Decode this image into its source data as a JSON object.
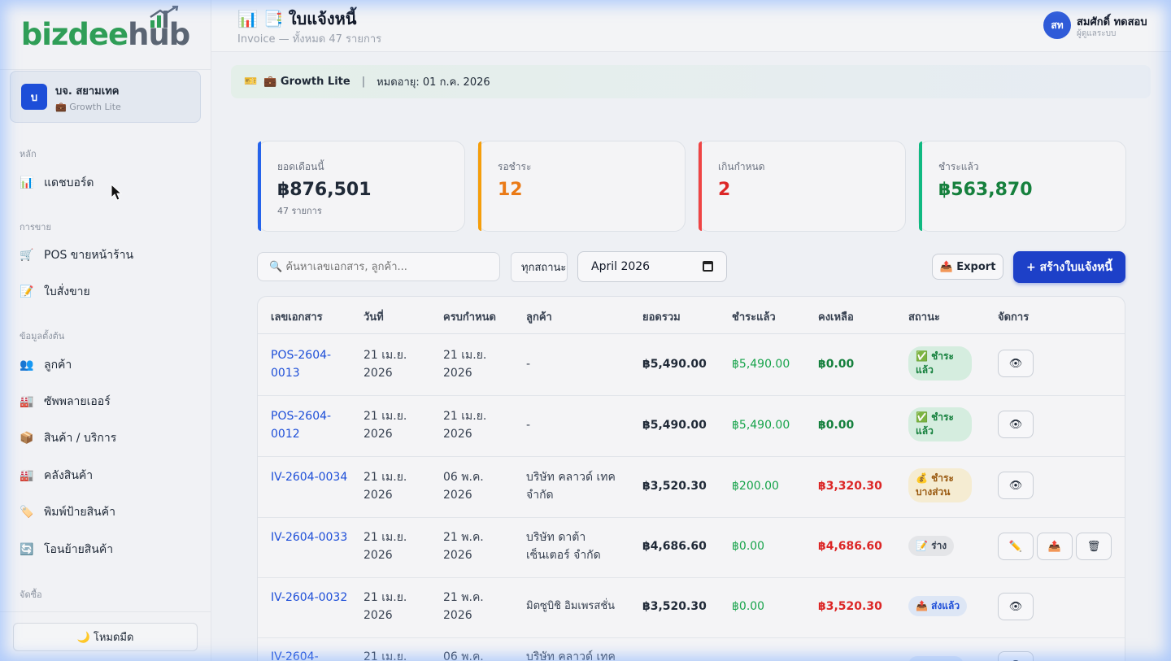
{
  "sidebar": {
    "logo": {
      "part1": "bizdee",
      "part2": "hub"
    },
    "org": {
      "avatar": "บ",
      "name": "บจ. สยามเทค",
      "plan": "💼 Growth Lite"
    },
    "sections": {
      "main": "หลัก",
      "sales": "การขาย",
      "master": "ข้อมูลตั้งต้น",
      "purchase": "จัดซื้อ"
    },
    "items": [
      {
        "icon": "📊",
        "label": "แดชบอร์ด"
      },
      {
        "icon": "🛒",
        "label": "POS ขายหน้าร้าน"
      },
      {
        "icon": "📝",
        "label": "ใบสั่งขาย"
      },
      {
        "icon": "👥",
        "label": "ลูกค้า"
      },
      {
        "icon": "🏭",
        "label": "ซัพพลายเออร์"
      },
      {
        "icon": "📦",
        "label": "สินค้า / บริการ"
      },
      {
        "icon": "🏭",
        "label": "คลังสินค้า"
      },
      {
        "icon": "🏷️",
        "label": "พิมพ์ป้ายสินค้า"
      },
      {
        "icon": "🔄",
        "label": "โอนย้ายสินค้า"
      }
    ],
    "dark_mode": "🌙 โหมดมืด"
  },
  "header": {
    "title_icons": "📊 📑",
    "title": "ใบแจ้งหนี้",
    "subtitle": "Invoice — ทั้งหมด 47 รายการ",
    "user": {
      "initials": "สท",
      "name": "สมศักดิ์ ทดสอบ",
      "role": "ผู้ดูแลระบบ"
    }
  },
  "plan_banner": {
    "icon": "🎫",
    "plan": "💼 Growth Lite",
    "expiry": "หมดอายุ: 01 ก.ค. 2026"
  },
  "stats": [
    {
      "label": "ยอดเดือนนี้",
      "value": "฿876,501",
      "sub": "47 รายการ",
      "color": "#2563eb",
      "value_color": "#1f2937"
    },
    {
      "label": "รอชำระ",
      "value": "12",
      "sub": "",
      "color": "#f59e0b",
      "value_color": "#ea7a16"
    },
    {
      "label": "เกินกำหนด",
      "value": "2",
      "sub": "",
      "color": "#ef4444",
      "value_color": "#dc2626"
    },
    {
      "label": "ชำระแล้ว",
      "value": "฿563,870",
      "sub": "",
      "color": "#10b981",
      "value_color": "#15803d"
    }
  ],
  "toolbar": {
    "search_placeholder": "🔍 ค้นหาเลขเอกสาร, ลูกค้า...",
    "status_filter": "ทุกสถานะ",
    "month": "April  2026",
    "export": "📤 Export",
    "create": "+ สร้างใบแจ้งหนี้"
  },
  "table": {
    "headers": [
      "เลขเอกสาร",
      "วันที่",
      "ครบกำหนด",
      "ลูกค้า",
      "ยอดรวม",
      "ชำระแล้ว",
      "คงเหลือ",
      "สถานะ",
      "จัดการ"
    ],
    "rows": [
      {
        "doc": "POS-2604-0013",
        "date": "21 เม.ย. 2026",
        "due": "21 เม.ย. 2026",
        "customer": "-",
        "total": "฿5,490.00",
        "paid": "฿5,490.00",
        "remaining": "฿0.00",
        "status": "✅ ชำระแล้ว",
        "status_type": "paid",
        "actions": [
          "👁"
        ]
      },
      {
        "doc": "POS-2604-0012",
        "date": "21 เม.ย. 2026",
        "due": "21 เม.ย. 2026",
        "customer": "-",
        "total": "฿5,490.00",
        "paid": "฿5,490.00",
        "remaining": "฿0.00",
        "status": "✅ ชำระแล้ว",
        "status_type": "paid",
        "actions": [
          "👁"
        ]
      },
      {
        "doc": "IV-2604-0034",
        "date": "21 เม.ย. 2026",
        "due": "06 พ.ค. 2026",
        "customer": "บริษัท คลาวด์ เทค จำกัด",
        "total": "฿3,520.30",
        "paid": "฿200.00",
        "remaining": "฿3,320.30",
        "status": "💰 ชำระบางส่วน",
        "status_type": "partial",
        "actions": [
          "👁"
        ]
      },
      {
        "doc": "IV-2604-0033",
        "date": "21 เม.ย. 2026",
        "due": "21 พ.ค. 2026",
        "customer": "บริษัท ดาต้า เซ็นเตอร์ จำกัด",
        "total": "฿4,686.60",
        "paid": "฿0.00",
        "remaining": "฿4,686.60",
        "status": "📝 ร่าง",
        "status_type": "draft",
        "actions": [
          "✏️",
          "📤",
          "🗑"
        ]
      },
      {
        "doc": "IV-2604-0032",
        "date": "21 เม.ย. 2026",
        "due": "21 พ.ค. 2026",
        "customer": "มิตซูบิชิ อิมเพรสชั่น",
        "total": "฿3,520.30",
        "paid": "฿0.00",
        "remaining": "฿3,520.30",
        "status": "📤 ส่งแล้ว",
        "status_type": "sent",
        "actions": [
          "👁"
        ]
      },
      {
        "doc": "IV-2604-",
        "date": "21 เม.ย.",
        "due": "06 พ.ค.",
        "customer": "บริษัท คลาวด์ เทค",
        "total": "",
        "paid": "",
        "remaining": "",
        "status": "",
        "status_type": "sent",
        "actions": [
          "👁"
        ]
      }
    ]
  }
}
